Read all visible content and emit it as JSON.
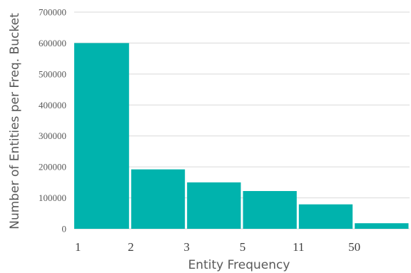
{
  "chart_data": {
    "type": "bar",
    "title": "",
    "xlabel": "Entity Frequency",
    "ylabel": "Number of Entities per Freq. Bucket",
    "ylim": [
      0,
      700000
    ],
    "yticks": [
      "0",
      "100000",
      "200000",
      "300000",
      "400000",
      "500000",
      "600000",
      "700000"
    ],
    "x_edge_labels": [
      "1",
      "2",
      "3",
      "5",
      "11",
      "50"
    ],
    "values": [
      600000,
      192000,
      150000,
      122000,
      79000,
      18000
    ],
    "bar_color": "#00b3ad",
    "grid": true,
    "legend": "none"
  }
}
